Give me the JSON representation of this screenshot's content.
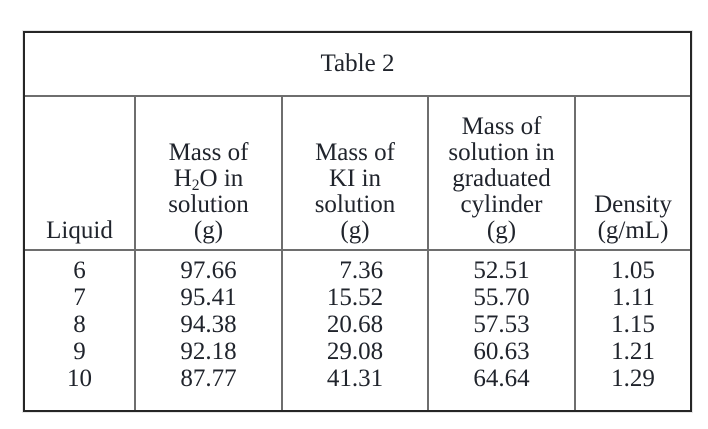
{
  "table": {
    "title": "Table 2",
    "columns": [
      {
        "key": "liquid",
        "header_lines": [
          "Liquid"
        ],
        "align": "center"
      },
      {
        "key": "h2o",
        "header_lines": [
          "Mass of",
          [
            {
              "t": "H"
            },
            {
              "t": "2",
              "sub": true
            },
            {
              "t": "O in"
            }
          ],
          "solution",
          "(g)"
        ],
        "align": "right"
      },
      {
        "key": "ki",
        "header_lines": [
          "Mass of",
          "KI in",
          "solution",
          "(g)"
        ],
        "align": "right"
      },
      {
        "key": "cylinder",
        "header_lines": [
          "Mass of",
          "solution in",
          "graduated",
          "cylinder",
          "(g)"
        ],
        "align": "right"
      },
      {
        "key": "density",
        "header_lines": [
          "Density",
          "(g/mL)"
        ],
        "align": "right"
      }
    ],
    "rows": [
      {
        "liquid": "6",
        "h2o": "97.66",
        "ki": "7.36",
        "cylinder": "52.51",
        "density": "1.05"
      },
      {
        "liquid": "7",
        "h2o": "95.41",
        "ki": "15.52",
        "cylinder": "55.70",
        "density": "1.11"
      },
      {
        "liquid": "8",
        "h2o": "94.38",
        "ki": "20.68",
        "cylinder": "57.53",
        "density": "1.15"
      },
      {
        "liquid": "9",
        "h2o": "92.18",
        "ki": "29.08",
        "cylinder": "60.63",
        "density": "1.21"
      },
      {
        "liquid": "10",
        "h2o": "87.77",
        "ki": "41.31",
        "cylinder": "64.64",
        "density": "1.29"
      }
    ],
    "colors": {
      "border_outer": "#262626",
      "border_inner": "#6e6e6e",
      "text": "#20242c",
      "paper": "#ffffff"
    }
  }
}
